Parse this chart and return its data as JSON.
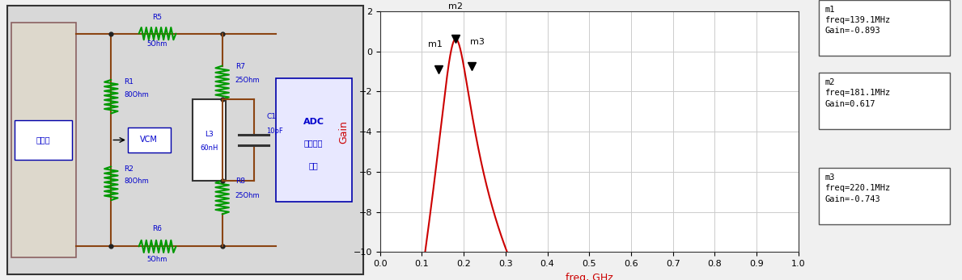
{
  "fig_width": 11.89,
  "fig_height": 3.47,
  "bg_color": "#f0f0f0",
  "plot_bg": "#ffffff",
  "curve_color": "#cc0000",
  "xlabel": "freq, GHz",
  "ylabel": "Gain",
  "xlabel_color": "#cc0000",
  "ylabel_color": "#cc0000",
  "xlim": [
    0.0,
    1.0
  ],
  "ylim": [
    -10,
    2
  ],
  "yticks": [
    -10,
    -8,
    -6,
    -4,
    -2,
    0,
    2
  ],
  "xticks": [
    0.0,
    0.1,
    0.2,
    0.3,
    0.4,
    0.5,
    0.6,
    0.7,
    0.8,
    0.9,
    1.0
  ],
  "markers": [
    {
      "name": "m1",
      "freq_ghz": 0.1391,
      "gain": -0.893
    },
    {
      "name": "m2",
      "freq_ghz": 0.1811,
      "gain": 0.617
    },
    {
      "name": "m3",
      "freq_ghz": 0.2201,
      "gain": -0.743
    }
  ],
  "legend_boxes": [
    {
      "label": "m1",
      "freq": "139.1MHz",
      "gain": "-0.893"
    },
    {
      "label": "m2",
      "freq": "181.1MHz",
      "gain": "0.617"
    },
    {
      "label": "m3",
      "freq": "220.1MHz",
      "gain": "-0.743"
    }
  ]
}
